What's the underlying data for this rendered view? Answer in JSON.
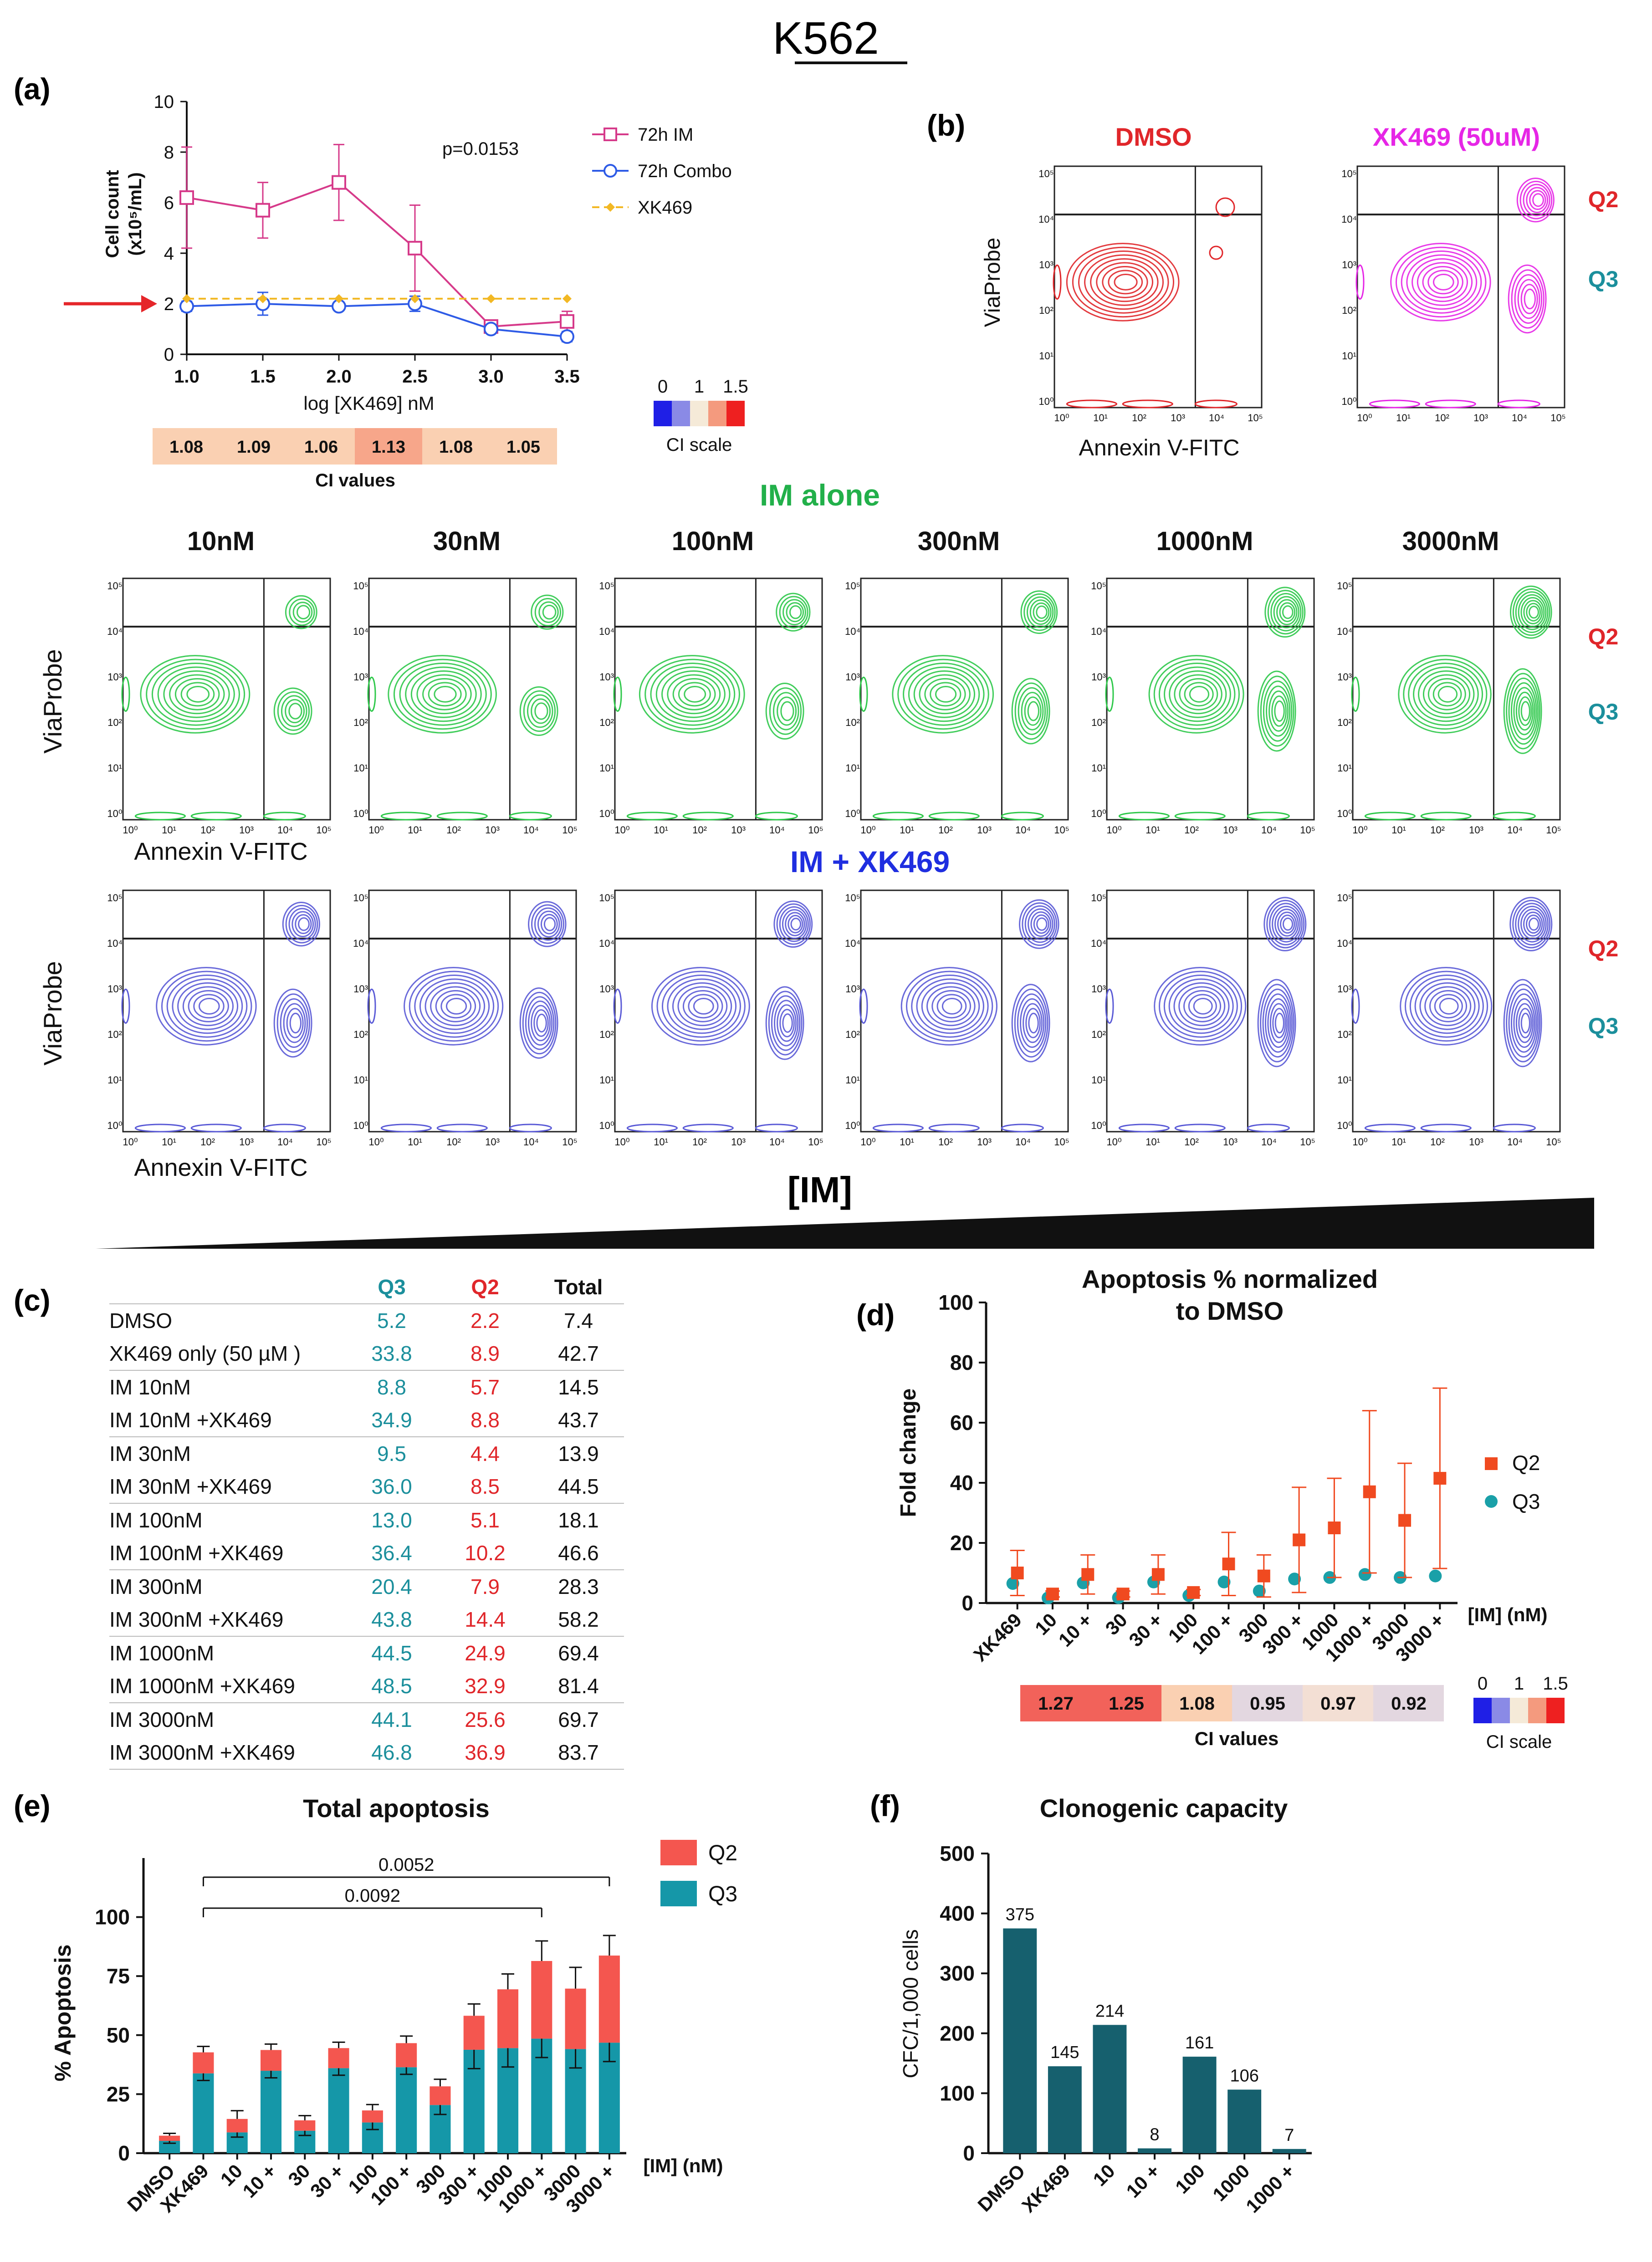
{
  "figure": {
    "title": "K562",
    "panel_labels": [
      "(a)",
      "(b)",
      "(c)",
      "(d)",
      "(e)",
      "(f)"
    ],
    "section_im_alone": "IM alone",
    "section_combo": "IM + XK469",
    "im_axis_label": "[IM]",
    "flow_x_label": "Annexin V-FITC",
    "flow_y_label": "ViaProbe",
    "quadrant_q2": "Q2",
    "quadrant_q3": "Q3",
    "flow_b_titles": [
      "DMSO",
      "XK469 (50uM)"
    ],
    "im_concentrations": [
      "10nM",
      "30nM",
      "100nM",
      "300nM",
      "1000nM",
      "3000nM"
    ],
    "flow_ticks": [
      "10⁰",
      "10¹",
      "10²",
      "10³",
      "10⁴",
      "10⁵"
    ]
  },
  "colors": {
    "im_red": "#d63a8a",
    "combo_blue": "#2e5be6",
    "xk_gold": "#f2b824",
    "dmso_red": "#e0262a",
    "xk_magenta": "#e626e6",
    "green_contour": "#2ec84a",
    "blue_contour": "#5a5ad6",
    "q2_red": "#e0262a",
    "q3_teal": "#1b8f9c",
    "teal_bar": "#1597a8",
    "salmon_bar": "#f4564f",
    "clono_bar": "#16606e"
  },
  "chart_data": [
    {
      "id": "a",
      "type": "line",
      "ylabel_line1": "Cell count",
      "ylabel_line2": "(x10⁵/mL)",
      "xlabel": "log [XK469] nM",
      "x": [
        1.0,
        1.5,
        2.0,
        2.5,
        3.0,
        3.5
      ],
      "xlim": [
        1.0,
        3.5
      ],
      "ylim": [
        0,
        10
      ],
      "x_ticks": [
        "1.0",
        "1.5",
        "2.0",
        "2.5",
        "3.0",
        "3.5"
      ],
      "y_ticks": [
        "0",
        "2",
        "4",
        "6",
        "8",
        "10"
      ],
      "annotation": "p=0.0153",
      "series": [
        {
          "name": "72h IM",
          "values": [
            6.2,
            5.7,
            6.8,
            4.2,
            1.1,
            1.3
          ],
          "err": [
            2.0,
            1.1,
            1.5,
            1.7,
            0.15,
            0.4
          ]
        },
        {
          "name": "72h Combo",
          "values": [
            1.9,
            2.0,
            1.9,
            2.0,
            1.0,
            0.7
          ],
          "err": [
            0.2,
            0.45,
            0.15,
            0.3,
            0.1,
            0.2
          ]
        },
        {
          "name": "XK469",
          "values": [
            2.2,
            2.2,
            2.2,
            2.2,
            2.2,
            2.2
          ],
          "err": [
            0,
            0,
            0,
            0,
            0,
            0
          ]
        }
      ],
      "ci_title": "CI values",
      "ci_values": [
        "1.08",
        "1.09",
        "1.06",
        "1.13",
        "1.08",
        "1.05"
      ],
      "ci_scale_title": "CI scale",
      "ci_scale_ticks": [
        "0",
        "1",
        "1.5"
      ]
    },
    {
      "id": "c",
      "type": "table",
      "columns": [
        "",
        "Q3",
        "Q2",
        "Total"
      ],
      "rows": [
        [
          "DMSO",
          "5.2",
          "2.2",
          "7.4"
        ],
        [
          "XK469 only (50 µM )",
          "33.8",
          "8.9",
          "42.7"
        ],
        [
          "IM 10nM",
          "8.8",
          "5.7",
          "14.5"
        ],
        [
          "IM 10nM +XK469",
          "34.9",
          "8.8",
          "43.7"
        ],
        [
          "IM 30nM",
          "9.5",
          "4.4",
          "13.9"
        ],
        [
          "IM 30nM +XK469",
          "36.0",
          "8.5",
          "44.5"
        ],
        [
          "IM 100nM",
          "13.0",
          "5.1",
          "18.1"
        ],
        [
          "IM 100nM +XK469",
          "36.4",
          "10.2",
          "46.6"
        ],
        [
          "IM 300nM",
          "20.4",
          "7.9",
          "28.3"
        ],
        [
          "IM 300nM +XK469",
          "43.8",
          "14.4",
          "58.2"
        ],
        [
          "IM 1000nM",
          "44.5",
          "24.9",
          "69.4"
        ],
        [
          "IM 1000nM +XK469",
          "48.5",
          "32.9",
          "81.4"
        ],
        [
          "IM 3000nM",
          "44.1",
          "25.6",
          "69.7"
        ],
        [
          "IM 3000nM +XK469",
          "46.8",
          "36.9",
          "83.7"
        ]
      ]
    },
    {
      "id": "d",
      "type": "scatter",
      "title_line1": "Apoptosis % normalized",
      "title_line2": "to DMSO",
      "ylabel": "Fold change",
      "xlabel": "[IM] (nM)",
      "categories": [
        "XK469",
        "10",
        "10 +",
        "30",
        "30 +",
        "100",
        "100 +",
        "300",
        "300 +",
        "1000",
        "1000 +",
        "3000",
        "3000 +"
      ],
      "ylim": [
        0,
        100
      ],
      "y_ticks": [
        "0",
        "20",
        "40",
        "60",
        "80",
        "100"
      ],
      "series": [
        {
          "name": "Q2",
          "values": [
            10,
            3,
            9.5,
            3,
            9.5,
            3.5,
            13,
            9,
            21,
            25,
            37,
            27.5,
            41.5
          ],
          "err": [
            7.5,
            1,
            6.5,
            1,
            6.5,
            1,
            10.5,
            7,
            17.5,
            16.5,
            27,
            19,
            30
          ]
        },
        {
          "name": "Q3",
          "values": [
            6.5,
            1.7,
            6.7,
            1.8,
            7,
            2.5,
            7,
            4,
            8,
            8.5,
            9.5,
            8.5,
            9
          ],
          "err": [
            0,
            0,
            0,
            0,
            0,
            0,
            0,
            0,
            0,
            0,
            0,
            0,
            0
          ]
        }
      ],
      "ci_title": "CI values",
      "ci_values": [
        "1.27",
        "1.25",
        "1.08",
        "0.95",
        "0.97",
        "0.92"
      ],
      "ci_scale_title": "CI scale",
      "ci_scale_ticks": [
        "0",
        "1",
        "1.5"
      ]
    },
    {
      "id": "e",
      "type": "bar",
      "title": "Total apoptosis",
      "ylabel": "% Apoptosis",
      "xlabel": "[IM] (nM)",
      "categories": [
        "DMSO",
        "XK469",
        "10",
        "10 +",
        "30",
        "30 +",
        "100",
        "100 +",
        "300",
        "300 +",
        "1000",
        "1000 +",
        "3000",
        "3000 +"
      ],
      "ylim": [
        0,
        125
      ],
      "y_ticks": [
        "0",
        "25",
        "50",
        "75",
        "100"
      ],
      "series": [
        {
          "name": "Q3",
          "values": [
            5.2,
            33.8,
            8.8,
            34.9,
            9.5,
            36.0,
            13.0,
            36.4,
            20.4,
            43.8,
            44.5,
            48.5,
            44.1,
            46.8
          ],
          "err": [
            1,
            3,
            2,
            3,
            2,
            3,
            3,
            3,
            4,
            8,
            8,
            8,
            8,
            8
          ]
        },
        {
          "name": "Q2",
          "values": [
            2.2,
            8.9,
            5.7,
            8.8,
            4.4,
            8.5,
            5.1,
            10.2,
            7.9,
            14.4,
            24.9,
            32.9,
            25.6,
            36.9
          ],
          "err": [
            1,
            2.5,
            3.5,
            2.5,
            2,
            2.5,
            2.5,
            3,
            3,
            5,
            6.5,
            8.5,
            9,
            8.5
          ]
        }
      ],
      "comparisons": [
        {
          "from": "XK469",
          "to": "3000 +",
          "label": "0.0052"
        },
        {
          "from": "XK469",
          "to": "1000 +",
          "label": "0.0092"
        }
      ]
    },
    {
      "id": "f",
      "type": "bar",
      "title": "Clonogenic capacity",
      "ylabel": "CFC/1,000 cells",
      "categories": [
        "DMSO",
        "XK469",
        "10",
        "10 +",
        "100",
        "1000",
        "1000 +"
      ],
      "values": [
        375,
        145,
        214,
        8,
        161,
        106,
        7
      ],
      "data_labels": [
        "375",
        "145",
        "214",
        "8",
        "161",
        "106",
        "7"
      ],
      "ylim": [
        0,
        500
      ],
      "y_ticks": [
        "0",
        "100",
        "200",
        "300",
        "400",
        "500"
      ]
    }
  ]
}
